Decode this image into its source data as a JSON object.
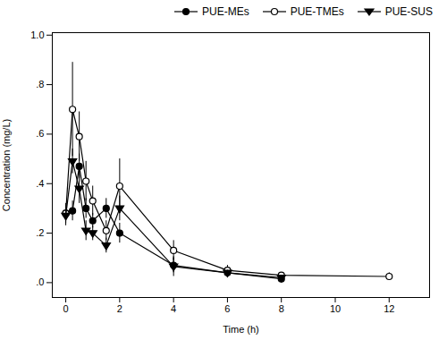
{
  "chart_data": {
    "type": "line",
    "xlabel": "Time (h)",
    "ylabel": "Concentration (mg/L)",
    "x": [
      0,
      0.25,
      0.5,
      0.75,
      1.0,
      1.5,
      2.0,
      4.0,
      6.0,
      8.0,
      12.0
    ],
    "series": [
      {
        "name": "PUE-MEs",
        "color": "#000000",
        "marker": "circle",
        "values": [
          0.28,
          0.29,
          0.47,
          0.3,
          0.25,
          0.3,
          0.2,
          0.07,
          0.04,
          0.015,
          null
        ],
        "errors": [
          0.03,
          0.04,
          0.05,
          0.04,
          0.03,
          0.04,
          0.04,
          0.03,
          0.02,
          0.01,
          null
        ]
      },
      {
        "name": "PUE-TMEs",
        "color": "#000000",
        "marker": "circle-open",
        "values": [
          0.28,
          0.7,
          0.59,
          0.41,
          0.33,
          0.21,
          0.39,
          0.13,
          0.05,
          0.03,
          0.025
        ],
        "errors": [
          0.04,
          0.19,
          0.1,
          0.08,
          0.06,
          0.04,
          0.11,
          0.04,
          0.02,
          0.01,
          0.015
        ]
      },
      {
        "name": "PUE-SUS",
        "color": "#000000",
        "marker": "triangle-down",
        "values": [
          0.27,
          0.49,
          0.38,
          0.21,
          0.2,
          0.15,
          0.3,
          0.065,
          0.04,
          0.02,
          null
        ],
        "errors": [
          0.04,
          0.05,
          0.06,
          0.04,
          0.03,
          0.03,
          0.05,
          0.04,
          0.01,
          0.01,
          null
        ]
      }
    ],
    "xlim": [
      -0.5,
      13.5
    ],
    "ylim": [
      -0.06,
      1.01
    ],
    "xticks": [
      0,
      2,
      4,
      6,
      8,
      10,
      12
    ],
    "yticks": [
      {
        "value": 0.0,
        "label": ".0"
      },
      {
        "value": 0.2,
        "label": ".2"
      },
      {
        "value": 0.4,
        "label": ".4"
      },
      {
        "value": 0.6,
        "label": ".6"
      },
      {
        "value": 0.8,
        "label": ".8"
      },
      {
        "value": 1.0,
        "label": "1.0"
      }
    ],
    "grid": false,
    "legend": "upper right"
  }
}
